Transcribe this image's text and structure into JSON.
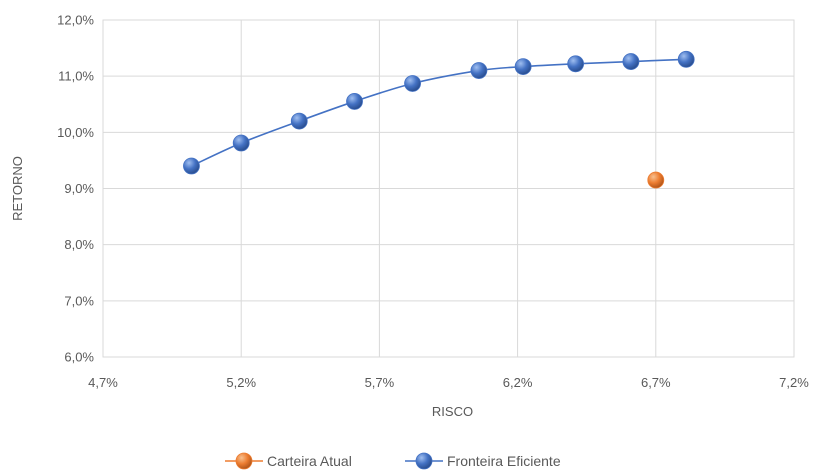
{
  "chart_data": {
    "type": "scatter",
    "xlabel": "RISCO",
    "ylabel": "RETORNO",
    "xlim": [
      4.7,
      7.2
    ],
    "ylim": [
      6.0,
      12.0
    ],
    "x_ticks": [
      "4,7%",
      "5,2%",
      "5,7%",
      "6,2%",
      "6,7%",
      "7,2%"
    ],
    "y_ticks": [
      "6,0%",
      "7,0%",
      "8,0%",
      "9,0%",
      "10,0%",
      "11,0%",
      "12,0%"
    ],
    "grid": true,
    "legend_position": "bottom",
    "series": [
      {
        "name": "Carteira Atual",
        "color": "#ED7D31",
        "line": false,
        "points": [
          [
            6.7,
            9.15
          ]
        ]
      },
      {
        "name": "Fronteira Eficiente",
        "color": "#4472C4",
        "line": true,
        "points": [
          [
            5.02,
            9.4
          ],
          [
            5.2,
            9.81
          ],
          [
            5.41,
            10.2
          ],
          [
            5.61,
            10.55
          ],
          [
            5.82,
            10.87
          ],
          [
            6.06,
            11.1
          ],
          [
            6.22,
            11.17
          ],
          [
            6.41,
            11.22
          ],
          [
            6.61,
            11.26
          ],
          [
            6.81,
            11.3
          ]
        ]
      }
    ]
  }
}
